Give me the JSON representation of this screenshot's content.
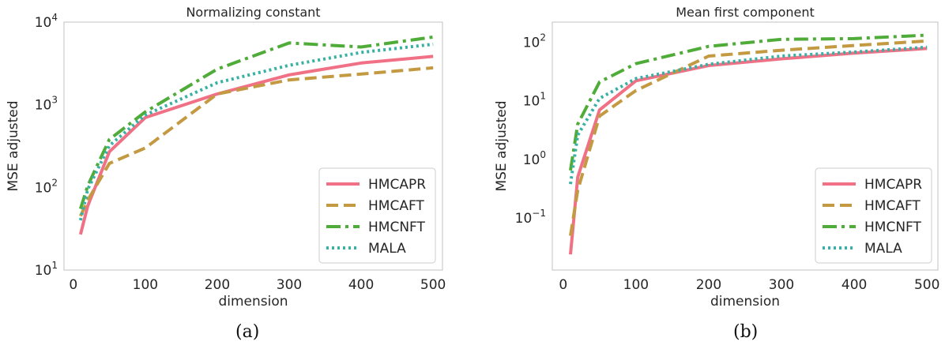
{
  "captions": [
    "(a)",
    "(b)"
  ],
  "colors": {
    "HMCAPR": "#f07185",
    "HMCAFT": "#c39a41",
    "HMCNFT": "#4fac38",
    "MALA": "#38b0a3",
    "axis_frame": "#cccccc",
    "text": "#262626"
  },
  "chart_data": [
    {
      "type": "line",
      "title": "Normalizing constant",
      "xlabel": "dimension",
      "ylabel": "MSE adjusted",
      "xlim": [
        -13,
        513
      ],
      "ylim": [
        10,
        10000
      ],
      "yscale": "log",
      "xticks": [
        "0",
        "100",
        "200",
        "300",
        "400",
        "500"
      ],
      "yticks": [
        {
          "base": "10",
          "exp": "1"
        },
        {
          "base": "10",
          "exp": "2"
        },
        {
          "base": "10",
          "exp": "3"
        },
        {
          "base": "10",
          "exp": "4"
        }
      ],
      "grid": false,
      "legend": "bottom-right",
      "x": [
        10,
        20,
        50,
        100,
        200,
        300,
        400,
        500
      ],
      "series": [
        {
          "name": "HMCAPR",
          "style": "solid",
          "values": [
            27,
            60,
            270,
            700,
            1350,
            2300,
            3200,
            3850
          ]
        },
        {
          "name": "HMCAFT",
          "style": "dashed",
          "values": [
            45,
            70,
            195,
            300,
            1350,
            2000,
            2350,
            2800
          ]
        },
        {
          "name": "HMCNFT",
          "style": "dashdot",
          "values": [
            55,
            105,
            380,
            820,
            2700,
            5600,
            5000,
            6600
          ]
        },
        {
          "name": "MALA",
          "style": "dotted",
          "values": [
            40,
            95,
            320,
            750,
            1850,
            3000,
            4300,
            5400
          ]
        }
      ]
    },
    {
      "type": "line",
      "title": "Mean first component",
      "xlabel": "dimension",
      "ylabel": "MSE adjusted",
      "xlim": [
        -15,
        515
      ],
      "ylim": [
        0.013,
        220
      ],
      "yscale": "log",
      "xticks": [
        "0",
        "100",
        "200",
        "300",
        "400",
        "500"
      ],
      "yticks": [
        {
          "base": "10",
          "exp": "−1"
        },
        {
          "base": "10",
          "exp": "0"
        },
        {
          "base": "10",
          "exp": "1"
        },
        {
          "base": "10",
          "exp": "2"
        }
      ],
      "grid": false,
      "legend": "bottom-right",
      "x": [
        10,
        20,
        50,
        100,
        200,
        300,
        400,
        500
      ],
      "series": [
        {
          "name": "HMCAPR",
          "style": "solid",
          "values": [
            0.024,
            0.5,
            7,
            22,
            40,
            52,
            65,
            78
          ]
        },
        {
          "name": "HMCAFT",
          "style": "dashed",
          "values": [
            0.05,
            0.3,
            5.5,
            15,
            58,
            73,
            88,
            105
          ]
        },
        {
          "name": "HMCNFT",
          "style": "dashdot",
          "values": [
            0.65,
            4,
            21,
            43,
            85,
            112,
            115,
            132
          ]
        },
        {
          "name": "MALA",
          "style": "dotted",
          "values": [
            0.38,
            2.6,
            11,
            24,
            42,
            58,
            68,
            82
          ]
        }
      ]
    }
  ]
}
